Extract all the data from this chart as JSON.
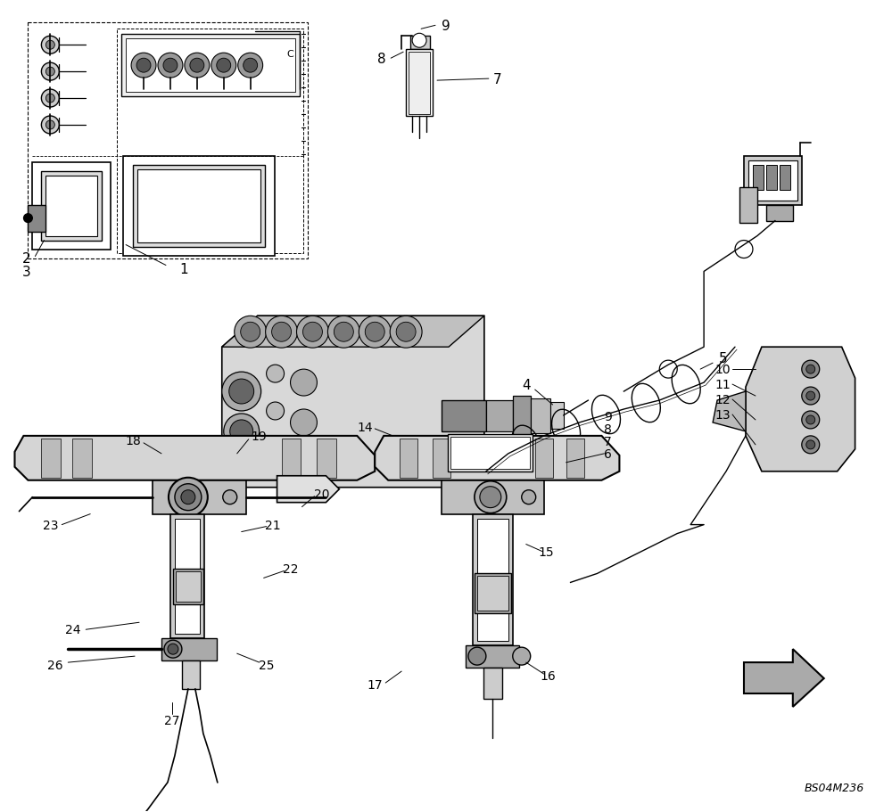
{
  "background_color": "#ffffff",
  "figure_width": 10.0,
  "figure_height": 9.12,
  "watermark": "BS04M236",
  "dpi": 100
}
